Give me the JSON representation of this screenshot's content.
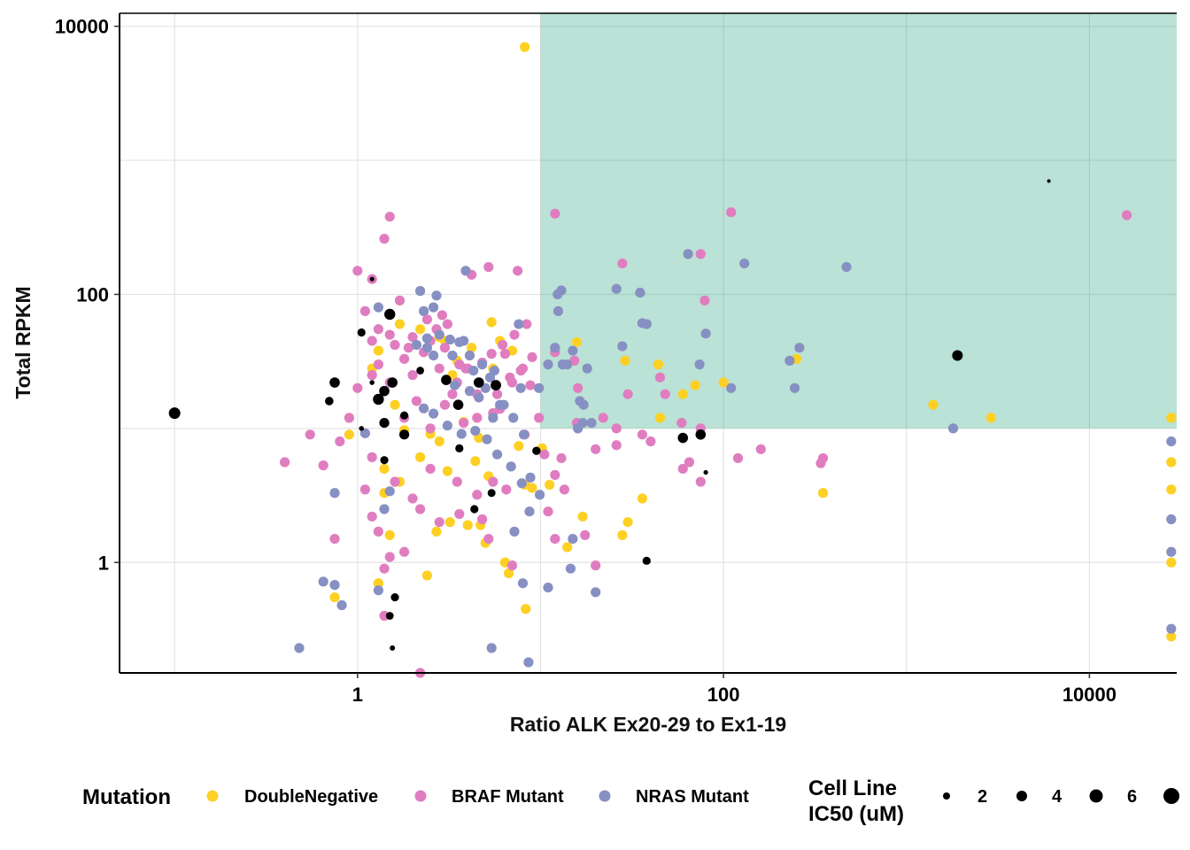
{
  "chart_data": {
    "type": "scatter",
    "xlabel": "Ratio ALK Ex20-29 to Ex1-19",
    "ylabel": "Total RPKM",
    "x_scale": "log10",
    "y_scale": "log10",
    "xlim": [
      0.05,
      30000
    ],
    "ylim": [
      0.15,
      12500
    ],
    "x_ticks": [
      1,
      100,
      10000
    ],
    "x_tick_labels": [
      "1",
      "100",
      "10000"
    ],
    "y_ticks": [
      1,
      100,
      10000
    ],
    "y_tick_labels": [
      "1",
      "100",
      "10000"
    ],
    "grid": true,
    "highlight_region": {
      "x": [
        10,
        30000
      ],
      "y": [
        10,
        12500
      ],
      "color": "#1b9e77",
      "opacity": 0.3
    },
    "colors": {
      "DoubleNegative": "#fdd023",
      "BRAF Mutant": "#e07dc0",
      "NRAS Mutant": "#8790c2",
      "IC50": "#000000"
    },
    "series": [
      {
        "name": "DoubleNegative",
        "points": [
          [
            8.2,
            7000
          ],
          [
            15.8,
            44
          ],
          [
            12,
            37
          ],
          [
            29,
            32
          ],
          [
            44,
            30
          ],
          [
            45,
            12
          ],
          [
            60,
            18
          ],
          [
            100,
            22
          ],
          [
            250,
            33
          ],
          [
            1400,
            15
          ],
          [
            350,
            3.3
          ],
          [
            2900,
            12
          ],
          [
            28000,
            12
          ],
          [
            28000,
            5.6
          ],
          [
            28000,
            3.5
          ],
          [
            28000,
            1.0
          ],
          [
            28000,
            0.28
          ],
          [
            1.7,
            60
          ],
          [
            2.2,
            55
          ],
          [
            1.3,
            38
          ],
          [
            1.2,
            28
          ],
          [
            3,
            45
          ],
          [
            3.5,
            32
          ],
          [
            4.2,
            40
          ],
          [
            5.4,
            62
          ],
          [
            6,
            45
          ],
          [
            7,
            38
          ],
          [
            5.5,
            28
          ],
          [
            3.3,
            25
          ],
          [
            1.6,
            15
          ],
          [
            2.8,
            48
          ],
          [
            1.4,
            3.3
          ],
          [
            1.4,
            5
          ],
          [
            1.7,
            4
          ],
          [
            2.8,
            8
          ],
          [
            6.4,
            1.0
          ],
          [
            6.7,
            0.83
          ],
          [
            4.7,
            1.9
          ],
          [
            5,
            1.4
          ],
          [
            8.3,
            0.45
          ],
          [
            10.2,
            7.1
          ],
          [
            8.2,
            3.8
          ],
          [
            9,
            3.6
          ],
          [
            0.9,
            9
          ],
          [
            0.75,
            0.55
          ],
          [
            1.3,
            0.7
          ],
          [
            1.5,
            1.6
          ],
          [
            2.4,
            0.8
          ],
          [
            3.2,
            2.0
          ],
          [
            4,
            1.9
          ],
          [
            2.7,
            1.7
          ],
          [
            11.2,
            3.8
          ],
          [
            14,
            1.3
          ],
          [
            17,
            2.2
          ],
          [
            28,
            1.6
          ],
          [
            30,
            2.0
          ],
          [
            36,
            3.0
          ],
          [
            70,
            21
          ],
          [
            7.6,
            7.4
          ],
          [
            4.4,
            5.7
          ],
          [
            3.1,
            4.8
          ],
          [
            2.2,
            6.1
          ],
          [
            5.2,
            4.4
          ],
          [
            1.8,
            9.7
          ],
          [
            2.5,
            9.1
          ],
          [
            3.8,
            11.2
          ],
          [
            4.6,
            8.5
          ]
        ]
      },
      {
        "name": "BRAF Mutant",
        "points": [
          [
            1.5,
            380
          ],
          [
            1.4,
            260
          ],
          [
            1,
            150
          ],
          [
            1.2,
            130
          ],
          [
            1.1,
            75
          ],
          [
            1.3,
            55
          ],
          [
            1.5,
            50
          ],
          [
            1.2,
            45
          ],
          [
            1.6,
            42
          ],
          [
            2,
            48
          ],
          [
            2.5,
            45
          ],
          [
            3,
            40
          ],
          [
            1.8,
            33
          ],
          [
            2.3,
            37
          ],
          [
            1.3,
            30
          ],
          [
            1.2,
            25
          ],
          [
            0.9,
            12
          ],
          [
            1,
            20
          ],
          [
            1.5,
            22
          ],
          [
            2,
            25
          ],
          [
            2.8,
            28
          ],
          [
            3.5,
            22
          ],
          [
            4.5,
            18
          ],
          [
            3,
            15
          ],
          [
            1.8,
            12
          ],
          [
            2.5,
            10
          ],
          [
            3.8,
            11
          ],
          [
            4.5,
            12
          ],
          [
            5.5,
            13
          ],
          [
            6,
            14
          ],
          [
            7,
            22
          ],
          [
            8,
            28
          ],
          [
            9,
            34
          ],
          [
            6.4,
            36
          ],
          [
            7.5,
            150
          ],
          [
            4.2,
            140
          ],
          [
            5.2,
            160
          ],
          [
            12,
            400
          ],
          [
            110,
            410
          ],
          [
            16000,
            390
          ],
          [
            75,
            200
          ],
          [
            28,
            170
          ],
          [
            15.8,
            11
          ],
          [
            22,
            12
          ],
          [
            26,
            7.5
          ],
          [
            30,
            18
          ],
          [
            48,
            18
          ],
          [
            60,
            5
          ],
          [
            65,
            5.6
          ],
          [
            75,
            10
          ],
          [
            120,
            6
          ],
          [
            160,
            7
          ],
          [
            340,
            5.5
          ],
          [
            350,
            6
          ],
          [
            75,
            4
          ],
          [
            36,
            9
          ],
          [
            40,
            8
          ],
          [
            26,
            10
          ],
          [
            20,
            7
          ],
          [
            0.55,
            9
          ],
          [
            0.4,
            5.6
          ],
          [
            0.65,
            5.3
          ],
          [
            0.8,
            8
          ],
          [
            0.75,
            1.5
          ],
          [
            1.3,
            1.7
          ],
          [
            1.5,
            1.1
          ],
          [
            1.4,
            0.9
          ],
          [
            1.8,
            1.2
          ],
          [
            2.2,
            2.5
          ],
          [
            2.8,
            2.0
          ],
          [
            3.6,
            2.3
          ],
          [
            4.8,
            2.1
          ],
          [
            5.2,
            1.5
          ],
          [
            4.5,
            3.2
          ],
          [
            7,
            0.95
          ],
          [
            11,
            2.4
          ],
          [
            12,
            1.5
          ],
          [
            12,
            4.5
          ],
          [
            13,
            6
          ],
          [
            10.5,
            6.4
          ],
          [
            13.5,
            3.5
          ],
          [
            20,
            0.95
          ],
          [
            1.1,
            3.5
          ],
          [
            1.2,
            6.1
          ],
          [
            1.6,
            4
          ],
          [
            2,
            3
          ],
          [
            2.5,
            5
          ],
          [
            3.5,
            4
          ],
          [
            5.5,
            4
          ],
          [
            6.5,
            3.5
          ],
          [
            1.2,
            2.2
          ],
          [
            1.4,
            0.4
          ],
          [
            2.2,
            0.15
          ],
          [
            1.7,
            90
          ],
          [
            2.4,
            65
          ],
          [
            2.9,
            70
          ],
          [
            3.6,
            30
          ],
          [
            4,
            28
          ],
          [
            5.8,
            18
          ],
          [
            6.8,
            24
          ],
          [
            7.8,
            27
          ],
          [
            8.8,
            21
          ],
          [
            9.8,
            12
          ],
          [
            8.2,
            9
          ],
          [
            2.1,
            16
          ],
          [
            3.3,
            18
          ],
          [
            3.9,
            28
          ],
          [
            4.8,
            31
          ],
          [
            5.4,
            36
          ],
          [
            6.2,
            42
          ],
          [
            7.2,
            50
          ],
          [
            8.4,
            60
          ],
          [
            3.1,
            60
          ],
          [
            2.7,
            55
          ],
          [
            1.9,
            40
          ],
          [
            17.5,
            1.6
          ],
          [
            16,
            20
          ],
          [
            12,
            37
          ],
          [
            45,
            24
          ],
          [
            79,
            90
          ],
          [
            59,
            11
          ],
          [
            15.3,
            32
          ]
        ]
      },
      {
        "name": "NRAS Mutant",
        "points": [
          [
            3.9,
            150
          ],
          [
            2.2,
            106
          ],
          [
            2.7,
            98
          ],
          [
            2.6,
            80
          ],
          [
            2.3,
            75
          ],
          [
            2.4,
            40
          ],
          [
            2.6,
            35
          ],
          [
            3.3,
            35
          ],
          [
            3.8,
            45
          ],
          [
            4.3,
            27
          ],
          [
            5,
            20
          ],
          [
            6,
            15
          ],
          [
            5.5,
            12
          ],
          [
            4.6,
            17
          ],
          [
            5.3,
            24
          ],
          [
            7.8,
            20
          ],
          [
            9.8,
            20
          ],
          [
            11,
            30
          ],
          [
            12,
            40
          ],
          [
            13.2,
            30
          ],
          [
            12.4,
            100
          ],
          [
            13,
            107
          ],
          [
            14,
            30
          ],
          [
            16,
            10
          ],
          [
            17,
            11
          ],
          [
            18,
            28
          ],
          [
            19,
            11
          ],
          [
            38,
            60
          ],
          [
            80,
            51
          ],
          [
            64,
            200
          ],
          [
            130,
            170
          ],
          [
            245,
            20
          ],
          [
            260,
            40
          ],
          [
            470,
            160
          ],
          [
            15,
            38
          ],
          [
            28,
            41
          ],
          [
            36,
            61
          ],
          [
            26,
            110
          ],
          [
            35,
            103
          ],
          [
            110,
            20
          ],
          [
            230,
            32
          ],
          [
            1800,
            10
          ],
          [
            28000,
            8
          ],
          [
            28000,
            1.2
          ],
          [
            28000,
            2.1
          ],
          [
            28000,
            0.32
          ],
          [
            14.6,
            0.9
          ],
          [
            20,
            0.6
          ],
          [
            15,
            1.5
          ],
          [
            8,
            0.7
          ],
          [
            7.2,
            1.7
          ],
          [
            11,
            0.65
          ],
          [
            8.6,
            0.18
          ],
          [
            5.4,
            0.23
          ],
          [
            0.48,
            0.23
          ],
          [
            0.65,
            0.72
          ],
          [
            0.75,
            0.68
          ],
          [
            0.82,
            0.48
          ],
          [
            1.3,
            0.62
          ],
          [
            1.4,
            2.5
          ],
          [
            1.5,
            3.4
          ],
          [
            0.75,
            3.3
          ],
          [
            1.1,
            9.2
          ],
          [
            1.3,
            80
          ],
          [
            2.1,
            42
          ],
          [
            2.4,
            47
          ],
          [
            2.8,
            50
          ],
          [
            3.2,
            46
          ],
          [
            3.6,
            44
          ],
          [
            4.1,
            35
          ],
          [
            4.8,
            30
          ],
          [
            5.6,
            27
          ],
          [
            6.3,
            15
          ],
          [
            7.1,
            12
          ],
          [
            8.1,
            9
          ],
          [
            8.8,
            4.3
          ],
          [
            9.9,
            3.2
          ],
          [
            8.7,
            2.4
          ],
          [
            7.9,
            3.9
          ],
          [
            6.9,
            5.2
          ],
          [
            5.8,
            6.4
          ],
          [
            5.1,
            8.3
          ],
          [
            4.4,
            9.6
          ],
          [
            3.7,
            9.1
          ],
          [
            3.1,
            10.5
          ],
          [
            2.6,
            12.9
          ],
          [
            2.3,
            14.1
          ],
          [
            3.4,
            21
          ],
          [
            4.1,
            19
          ],
          [
            74,
            30
          ],
          [
            12.5,
            75
          ],
          [
            7.6,
            60
          ],
          [
            16.4,
            16
          ],
          [
            17.2,
            15
          ]
        ]
      }
    ],
    "ic50_points": [
      [
        0.1,
        13,
        6.5
      ],
      [
        0.75,
        22,
        5.8
      ],
      [
        0.7,
        16,
        4.8
      ],
      [
        1.05,
        52,
        4.6
      ],
      [
        1.2,
        130,
        2.6
      ],
      [
        1.2,
        22,
        2.8
      ],
      [
        1.3,
        16.5,
        6.2
      ],
      [
        1.5,
        71,
        6.2
      ],
      [
        1.4,
        19,
        5.8
      ],
      [
        1.4,
        11,
        5.6
      ],
      [
        1.4,
        5.8,
        4.6
      ],
      [
        1.05,
        10,
        2.8
      ],
      [
        1.55,
        22,
        5.8
      ],
      [
        1.8,
        12.5,
        4.6
      ],
      [
        1.8,
        9,
        5.6
      ],
      [
        1.6,
        0.55,
        4.6
      ],
      [
        1.55,
        0.23,
        3.0
      ],
      [
        1.5,
        0.4,
        4.4
      ],
      [
        2.2,
        27,
        4.4
      ],
      [
        3.05,
        23,
        5.8
      ],
      [
        3.55,
        15,
        5.8
      ],
      [
        3.6,
        7.1,
        4.6
      ],
      [
        4.35,
        2.5,
        4.6
      ],
      [
        5.4,
        3.3,
        4.5
      ],
      [
        4.6,
        22,
        5.8
      ],
      [
        5.7,
        21,
        5.9
      ],
      [
        9.5,
        6.8,
        4.7
      ],
      [
        38,
        1.03,
        4.6
      ],
      [
        60,
        8.5,
        5.8
      ],
      [
        75,
        9.0,
        5.8
      ],
      [
        80,
        4.7,
        2.6
      ],
      [
        1900,
        35,
        6.0
      ]
    ]
  },
  "legend": {
    "mutation_title": "Mutation",
    "mutation_items": [
      "DoubleNegative",
      "BRAF Mutant",
      "NRAS Mutant"
    ],
    "size_title_line1": "Cell Line",
    "size_title_line2": "IC50 (uM)",
    "size_items": [
      "2",
      "4",
      "6"
    ]
  }
}
